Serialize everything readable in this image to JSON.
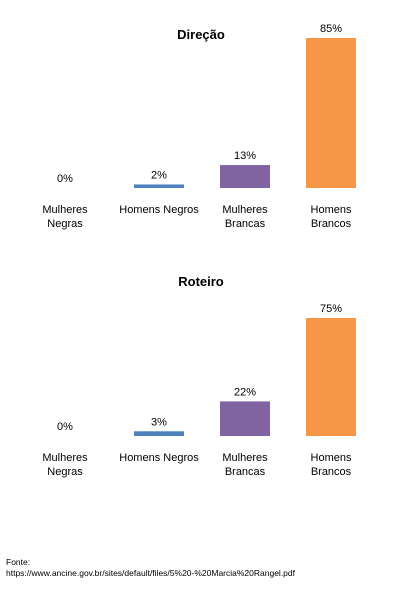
{
  "chart_data": [
    {
      "type": "bar",
      "title": "Direção",
      "categories": [
        [
          "Mulheres",
          "Negras"
        ],
        [
          "Homens Negros"
        ],
        [
          "Mulheres",
          "Brancas"
        ],
        [
          "Homens",
          "Brancos"
        ]
      ],
      "values": [
        0,
        2,
        13,
        85
      ],
      "data_labels": [
        "0%",
        "2%",
        "13%",
        "85%"
      ],
      "colors": [
        "#4f81bd",
        "#4f81bd",
        "#8064a2",
        "#f79646"
      ],
      "unit": "%",
      "ylim": [
        0,
        85
      ],
      "grid": false,
      "legend": "none"
    },
    {
      "type": "bar",
      "title": "Roteiro",
      "categories": [
        [
          "Mulheres",
          "Negras"
        ],
        [
          "Homens Negros"
        ],
        [
          "Mulheres",
          "Brancas"
        ],
        [
          "Homens",
          "Brancos"
        ]
      ],
      "values": [
        0,
        3,
        22,
        75
      ],
      "data_labels": [
        "0%",
        "3%",
        "22%",
        "75%"
      ],
      "colors": [
        "#4f81bd",
        "#4f81bd",
        "#8064a2",
        "#f79646"
      ],
      "unit": "%",
      "ylim": [
        0,
        75
      ],
      "grid": false,
      "legend": "none"
    }
  ],
  "source": {
    "label": "Fonte:",
    "url": "https://www.ancine.gov.br/sites/default/files/5%20-%20Marcia%20Rangel.pdf"
  }
}
